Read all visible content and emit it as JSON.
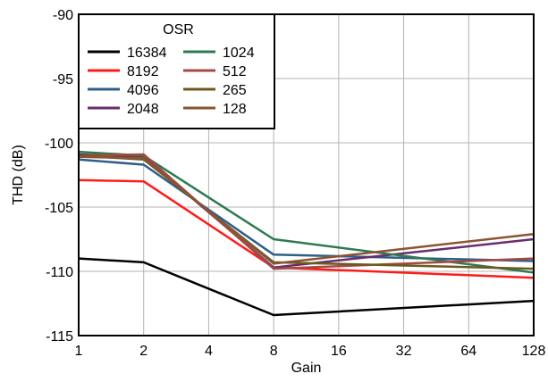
{
  "chart_data": {
    "type": "line",
    "x": [
      1,
      2,
      4,
      8,
      16,
      32,
      64,
      128
    ],
    "x_tick_labels": [
      "1",
      "2",
      "4",
      "8",
      "16",
      "32",
      "64",
      "128"
    ],
    "x_scale": "log2",
    "xlabel": "Gain",
    "ylabel": "THD (dB)",
    "ylim": [
      -115,
      -90
    ],
    "y_ticks": [
      -90,
      -95,
      -100,
      -105,
      -110,
      -115
    ],
    "y_tick_labels": [
      "-90",
      "-95",
      "-100",
      "-105",
      "-110",
      "-115"
    ],
    "grid": true,
    "legend": {
      "title": "OSR",
      "placement": "top-left",
      "columns": 2
    },
    "series": [
      {
        "name": "16384",
        "color": "#000000",
        "x": [
          1,
          2,
          8,
          128
        ],
        "values": [
          -109.0,
          -109.3,
          -113.4,
          -112.3
        ]
      },
      {
        "name": "8192",
        "color": "#ff1a1a",
        "x": [
          1,
          2,
          8,
          128
        ],
        "values": [
          -102.9,
          -103.0,
          -109.7,
          -110.5
        ]
      },
      {
        "name": "4096",
        "color": "#2e5e8a",
        "x": [
          1,
          2,
          8,
          128
        ],
        "values": [
          -101.3,
          -101.7,
          -108.7,
          -109.2
        ]
      },
      {
        "name": "2048",
        "color": "#6a2c6e",
        "x": [
          1,
          2,
          8,
          128
        ],
        "values": [
          -100.9,
          -101.1,
          -109.7,
          -107.5
        ]
      },
      {
        "name": "1024",
        "color": "#2e7a52",
        "x": [
          1,
          2,
          8,
          128
        ],
        "values": [
          -100.7,
          -101.0,
          -107.5,
          -110.1
        ]
      },
      {
        "name": "512",
        "color": "#a44a44",
        "x": [
          1,
          2,
          8,
          128
        ],
        "values": [
          -101.0,
          -100.9,
          -109.8,
          -109.0
        ]
      },
      {
        "name": "265",
        "color": "#6b5a1e",
        "x": [
          1,
          2,
          8,
          128
        ],
        "values": [
          -101.0,
          -101.3,
          -109.3,
          -109.8
        ]
      },
      {
        "name": "128",
        "color": "#8a5530",
        "x": [
          1,
          2,
          8,
          128
        ],
        "values": [
          -101.1,
          -101.2,
          -109.4,
          -107.1
        ]
      }
    ]
  }
}
